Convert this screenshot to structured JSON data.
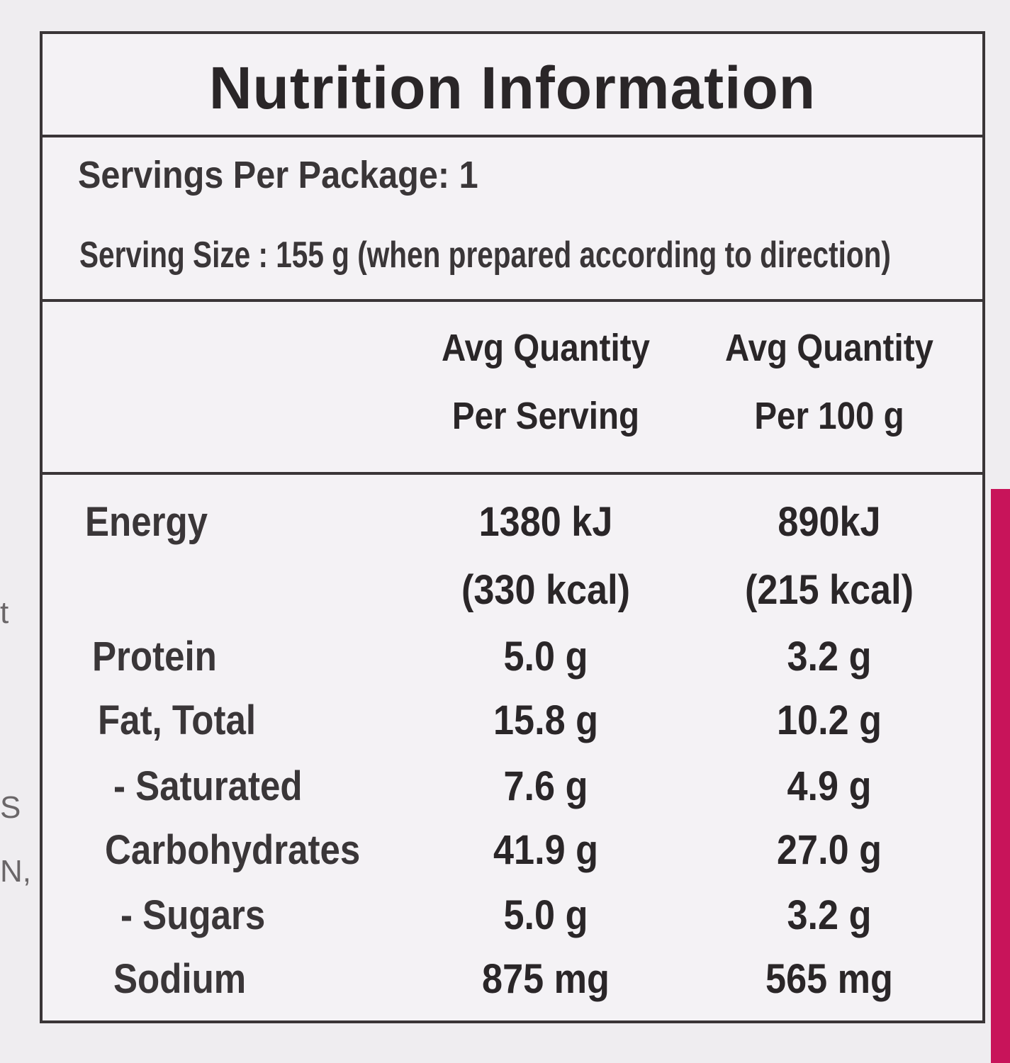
{
  "side_text": [
    "t",
    "S",
    "N,"
  ],
  "header": {
    "title": "Nutrition Information"
  },
  "servings": {
    "per_package": "Servings Per Package: 1",
    "size": "Serving Size : 155 g (when prepared according to direction)"
  },
  "table": {
    "columns": [
      [
        "Avg Quantity",
        "Per Serving"
      ],
      [
        "Avg Quantity",
        "Per 100 g"
      ]
    ],
    "rows": [
      [
        "Energy",
        [
          "1380 kJ",
          "(330 kcal)"
        ],
        [
          "890kJ",
          "(215 kcal)"
        ]
      ],
      [
        "Protein",
        [
          "5.0 g"
        ],
        [
          "3.2 g"
        ]
      ],
      [
        "Fat, Total",
        [
          "15.8 g"
        ],
        [
          "10.2 g"
        ]
      ],
      [
        " - Saturated",
        [
          "7.6 g"
        ],
        [
          "4.9 g"
        ]
      ],
      [
        "Carbohydrates",
        [
          "41.9 g"
        ],
        [
          "27.0 g"
        ]
      ],
      [
        " - Sugars",
        [
          "5.0 g"
        ],
        [
          "3.2 g"
        ]
      ],
      [
        "Sodium",
        [
          "875 mg"
        ],
        [
          "565 mg"
        ]
      ]
    ]
  }
}
